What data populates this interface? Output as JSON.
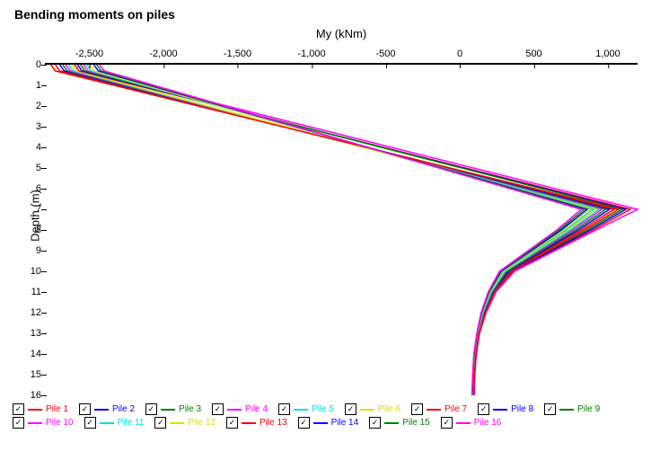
{
  "chart": {
    "title": "Bending moments on piles",
    "xlabel": "My (kNm)",
    "ylabel": "Depth (m)",
    "type": "line",
    "background_color": "#ffffff",
    "axis_color": "#000000",
    "title_fontsize": 14,
    "label_fontsize": 13,
    "tick_fontsize": 11,
    "xlim": [
      -2800,
      1200
    ],
    "ylim": [
      0,
      16
    ],
    "xticks": [
      -2500,
      -2000,
      -1500,
      -1000,
      -500,
      0,
      500,
      1000
    ],
    "xtick_labels": [
      "-2,500",
      "-2,000",
      "-1,500",
      "-1,000",
      "-500",
      "0",
      "500",
      "1,000"
    ],
    "yticks": [
      0,
      1,
      2,
      3,
      4,
      5,
      6,
      7,
      8,
      9,
      10,
      11,
      12,
      13,
      14,
      15,
      16
    ],
    "line_width": 1.5,
    "series": [
      {
        "name": "Pile 1",
        "color": "#ff0000",
        "checked": true,
        "depth": [
          0,
          0.3,
          7,
          8,
          10,
          11,
          12,
          13,
          14,
          15,
          16
        ],
        "my": [
          -2730,
          -2700,
          1040,
          820,
          340,
          230,
          170,
          130,
          110,
          100,
          95
        ]
      },
      {
        "name": "Pile 2",
        "color": "#0000ff",
        "checked": true,
        "depth": [
          0,
          0.3,
          7,
          8,
          10,
          11,
          12,
          13,
          14,
          15,
          16
        ],
        "my": [
          -2700,
          -2670,
          1010,
          800,
          330,
          225,
          165,
          128,
          108,
          98,
          93
        ]
      },
      {
        "name": "Pile 3",
        "color": "#008000",
        "checked": true,
        "depth": [
          0,
          0.3,
          7,
          8,
          10,
          11,
          12,
          13,
          14,
          15,
          16
        ],
        "my": [
          -2680,
          -2650,
          985,
          780,
          320,
          220,
          160,
          125,
          105,
          96,
          91
        ]
      },
      {
        "name": "Pile 4",
        "color": "#ff00ff",
        "checked": true,
        "depth": [
          0,
          0.3,
          7,
          8,
          10,
          11,
          12,
          13,
          14,
          15,
          16
        ],
        "my": [
          -2660,
          -2630,
          960,
          760,
          310,
          215,
          158,
          123,
          103,
          94,
          89
        ]
      },
      {
        "name": "Pile 5",
        "color": "#00e0e0",
        "checked": true,
        "depth": [
          0,
          0.3,
          7,
          8,
          10,
          11,
          12,
          13,
          14,
          15,
          16
        ],
        "my": [
          -2640,
          -2610,
          940,
          745,
          305,
          212,
          156,
          122,
          102,
          93,
          88
        ]
      },
      {
        "name": "Pile 6",
        "color": "#e0e000",
        "checked": true,
        "depth": [
          0,
          0.3,
          7,
          8,
          10,
          11,
          12,
          13,
          14,
          15,
          16
        ],
        "my": [
          -2620,
          -2590,
          920,
          730,
          298,
          208,
          153,
          120,
          100,
          92,
          87
        ]
      },
      {
        "name": "Pile 7",
        "color": "#ff0000",
        "checked": true,
        "depth": [
          0,
          0.3,
          7,
          8,
          10,
          11,
          12,
          13,
          14,
          15,
          16
        ],
        "my": [
          -2600,
          -2570,
          1150,
          900,
          360,
          240,
          175,
          132,
          111,
          101,
          96
        ]
      },
      {
        "name": "Pile 8",
        "color": "#0000ff",
        "checked": true,
        "depth": [
          0,
          0.3,
          7,
          8,
          10,
          11,
          12,
          13,
          14,
          15,
          16
        ],
        "my": [
          -2580,
          -2550,
          1120,
          880,
          352,
          236,
          172,
          130,
          110,
          100,
          95
        ]
      },
      {
        "name": "Pile 9",
        "color": "#008000",
        "checked": true,
        "depth": [
          0,
          0.3,
          7,
          8,
          10,
          11,
          12,
          13,
          14,
          15,
          16
        ],
        "my": [
          -2560,
          -2530,
          1095,
          860,
          345,
          232,
          170,
          129,
          109,
          99,
          94
        ]
      },
      {
        "name": "Pile 10",
        "color": "#ff00ff",
        "checked": true,
        "depth": [
          0,
          0.3,
          7,
          8,
          10,
          11,
          12,
          13,
          14,
          15,
          16
        ],
        "my": [
          -2540,
          -2510,
          1200,
          920,
          370,
          245,
          178,
          134,
          112,
          102,
          97
        ]
      },
      {
        "name": "Pile 11",
        "color": "#00e0e0",
        "checked": true,
        "depth": [
          0,
          0.3,
          7,
          8,
          10,
          11,
          12,
          13,
          14,
          15,
          16
        ],
        "my": [
          -2520,
          -2490,
          900,
          715,
          292,
          205,
          152,
          119,
          99,
          91,
          86
        ]
      },
      {
        "name": "Pile 12",
        "color": "#e0e000",
        "checked": true,
        "depth": [
          0,
          0.3,
          7,
          8,
          10,
          11,
          12,
          13,
          14,
          15,
          16
        ],
        "my": [
          -2500,
          -2470,
          880,
          700,
          286,
          202,
          150,
          118,
          98,
          90,
          85
        ]
      },
      {
        "name": "Pile 13",
        "color": "#ff0000",
        "checked": true,
        "depth": [
          0,
          0.3,
          7,
          8,
          10,
          11,
          12,
          13,
          14,
          15,
          16
        ],
        "my": [
          -2760,
          -2730,
          1070,
          840,
          350,
          235,
          172,
          131,
          110,
          100,
          95
        ]
      },
      {
        "name": "Pile 14",
        "color": "#0000ff",
        "checked": true,
        "depth": [
          0,
          0.3,
          7,
          8,
          10,
          11,
          12,
          13,
          14,
          15,
          16
        ],
        "my": [
          -2470,
          -2440,
          860,
          685,
          280,
          198,
          148,
          117,
          97,
          89,
          84
        ]
      },
      {
        "name": "Pile 15",
        "color": "#008000",
        "checked": true,
        "depth": [
          0,
          0.3,
          7,
          8,
          10,
          11,
          12,
          13,
          14,
          15,
          16
        ],
        "my": [
          -2450,
          -2420,
          840,
          670,
          274,
          195,
          146,
          116,
          96,
          88,
          83
        ]
      },
      {
        "name": "Pile 16",
        "color": "#ff00ff",
        "checked": true,
        "depth": [
          0,
          0.3,
          7,
          8,
          10,
          11,
          12,
          13,
          14,
          15,
          16
        ],
        "my": [
          -2430,
          -2400,
          820,
          655,
          268,
          192,
          144,
          115,
          95,
          87,
          82
        ]
      }
    ]
  }
}
